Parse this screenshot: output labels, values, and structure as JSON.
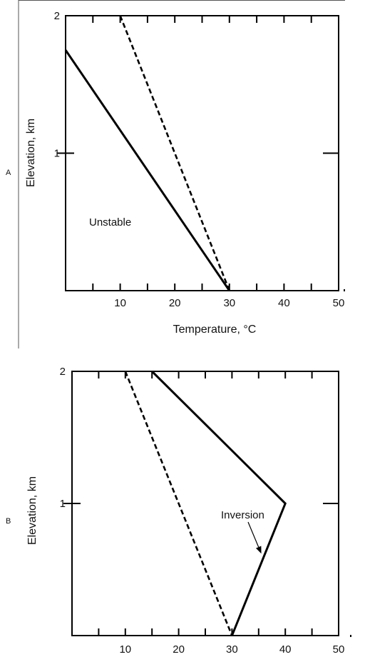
{
  "chart_data": [
    {
      "type": "line",
      "panel_label": "A",
      "xlabel": "Temperature, °C",
      "ylabel": "Elevation, km",
      "xlim": [
        0,
        50
      ],
      "ylim": [
        0,
        2
      ],
      "x_ticks": [
        10,
        20,
        30,
        40,
        50
      ],
      "y_ticks": [
        1,
        2
      ],
      "grid": false,
      "series": [
        {
          "style": "solid",
          "color": "#000000",
          "points": [
            [
              0,
              1.75
            ],
            [
              30,
              0
            ]
          ]
        },
        {
          "style": "dashed",
          "color": "#000000",
          "points": [
            [
              10,
              2
            ],
            [
              30,
              0
            ]
          ]
        }
      ],
      "annotations": [
        {
          "text": "Unstable",
          "x": 4.5,
          "y": 0.5
        }
      ]
    },
    {
      "type": "line",
      "panel_label": "B",
      "xlabel": "",
      "ylabel": "Elevation, km",
      "xlim": [
        0,
        50
      ],
      "ylim": [
        0,
        2
      ],
      "x_ticks": [
        10,
        20,
        30,
        40,
        50
      ],
      "y_ticks": [
        1,
        2
      ],
      "grid": false,
      "series": [
        {
          "style": "solid",
          "color": "#000000",
          "points": [
            [
              15,
              2
            ],
            [
              40,
              1
            ],
            [
              30,
              0
            ]
          ]
        },
        {
          "style": "dashed",
          "color": "#000000",
          "points": [
            [
              10,
              2
            ],
            [
              30,
              0
            ]
          ]
        }
      ],
      "annotations": [
        {
          "text": "Inversion",
          "x": 27.5,
          "y": 0.97,
          "arrow_to": [
            35.5,
            0.62
          ]
        }
      ]
    }
  ]
}
